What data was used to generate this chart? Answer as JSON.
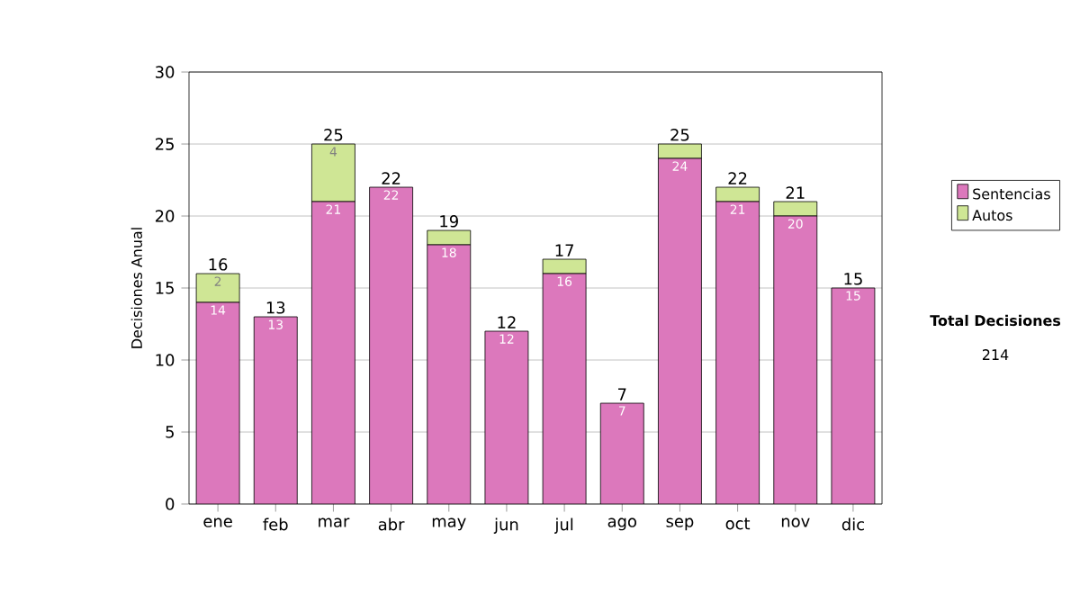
{
  "chart_data": {
    "type": "bar",
    "stacked": true,
    "ylabel": "Decisiones Anual",
    "categories": [
      "ene",
      "feb",
      "mar",
      "abr",
      "may",
      "jun",
      "jul",
      "ago",
      "sep",
      "oct",
      "nov",
      "dic"
    ],
    "series": [
      {
        "name": "Sentencias",
        "color": "#dc78bc",
        "values": [
          14,
          13,
          21,
          22,
          18,
          12,
          16,
          7,
          24,
          21,
          20,
          15
        ],
        "value_labels": [
          "14",
          "13",
          "21",
          "22",
          "18",
          "12",
          "16",
          "7",
          "24",
          "21",
          "20",
          "15"
        ]
      },
      {
        "name": "Autos",
        "color": "#cfe695",
        "values": [
          2,
          0,
          4,
          0,
          1,
          0,
          1,
          0,
          1,
          1,
          1,
          0
        ],
        "value_labels": [
          "2",
          null,
          "4",
          null,
          null,
          null,
          null,
          null,
          null,
          null,
          null,
          null
        ]
      }
    ],
    "totals": [
      "16",
      "13",
      "25",
      "22",
      "19",
      "12",
      "17",
      "7",
      "25",
      "22",
      "21",
      "15"
    ],
    "ylim": [
      0,
      30
    ],
    "yticks": [
      0,
      5,
      10,
      15,
      20,
      25,
      30
    ],
    "grid": "y",
    "legend": "right",
    "annotations": [
      "Total Decisiones",
      "214"
    ]
  }
}
